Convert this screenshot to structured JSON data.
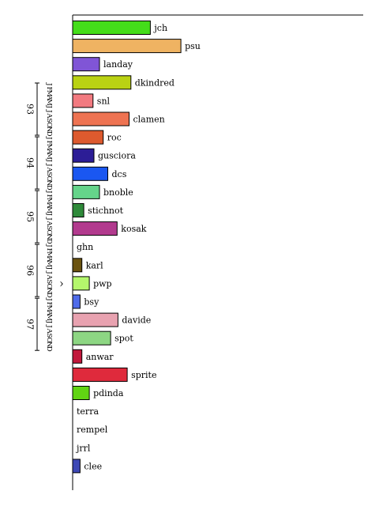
{
  "chart_data": {
    "type": "bar",
    "orientation": "horizontal",
    "title": "",
    "xlabel": "",
    "ylabel": "",
    "grid": false,
    "legend": "none",
    "time_axis": {
      "years": [
        "93",
        "94",
        "95",
        "96",
        "97"
      ],
      "month_letters": "JFMAMJJASOND",
      "marker_label": "^",
      "marker_after_year_index": 3,
      "marker_after_month_index": 8
    },
    "series": [
      {
        "name": "jch",
        "value": 8.4,
        "color": "#44dd1a"
      },
      {
        "name": "psu",
        "value": 11.7,
        "color": "#efb362"
      },
      {
        "name": "landay",
        "value": 2.9,
        "color": "#8055d6"
      },
      {
        "name": "dkindred",
        "value": 6.3,
        "color": "#bad213"
      },
      {
        "name": "snl",
        "value": 2.2,
        "color": "#f27a80"
      },
      {
        "name": "clamen",
        "value": 6.1,
        "color": "#ee7352"
      },
      {
        "name": "roc",
        "value": 3.3,
        "color": "#dd5a2e"
      },
      {
        "name": "gusciora",
        "value": 2.3,
        "color": "#2c1d96"
      },
      {
        "name": "dcs",
        "value": 3.8,
        "color": "#1a57f1"
      },
      {
        "name": "bnoble",
        "value": 2.9,
        "color": "#65d48a"
      },
      {
        "name": "stichnot",
        "value": 1.2,
        "color": "#2f8a3a"
      },
      {
        "name": "kosak",
        "value": 4.8,
        "color": "#b23a8e"
      },
      {
        "name": "ghn",
        "value": 0,
        "color": "#ffffff"
      },
      {
        "name": "karl",
        "value": 1.0,
        "color": "#6b5310"
      },
      {
        "name": "pwp",
        "value": 1.8,
        "color": "#b4f76c"
      },
      {
        "name": "bsy",
        "value": 0.8,
        "color": "#4f6bea"
      },
      {
        "name": "davide",
        "value": 4.9,
        "color": "#e8a2b0"
      },
      {
        "name": "spot",
        "value": 4.1,
        "color": "#8dd683"
      },
      {
        "name": "anwar",
        "value": 1.0,
        "color": "#c2183c"
      },
      {
        "name": "sprite",
        "value": 5.9,
        "color": "#df2a3c"
      },
      {
        "name": "pdinda",
        "value": 1.8,
        "color": "#61d413"
      },
      {
        "name": "terra",
        "value": 0,
        "color": "#ffffff"
      },
      {
        "name": "rempel",
        "value": 0,
        "color": "#ffffff"
      },
      {
        "name": "jrrl",
        "value": 0,
        "color": "#ffffff"
      },
      {
        "name": "clee",
        "value": 0.8,
        "color": "#3d48b6"
      }
    ],
    "xlim": [
      0,
      31.4
    ]
  }
}
